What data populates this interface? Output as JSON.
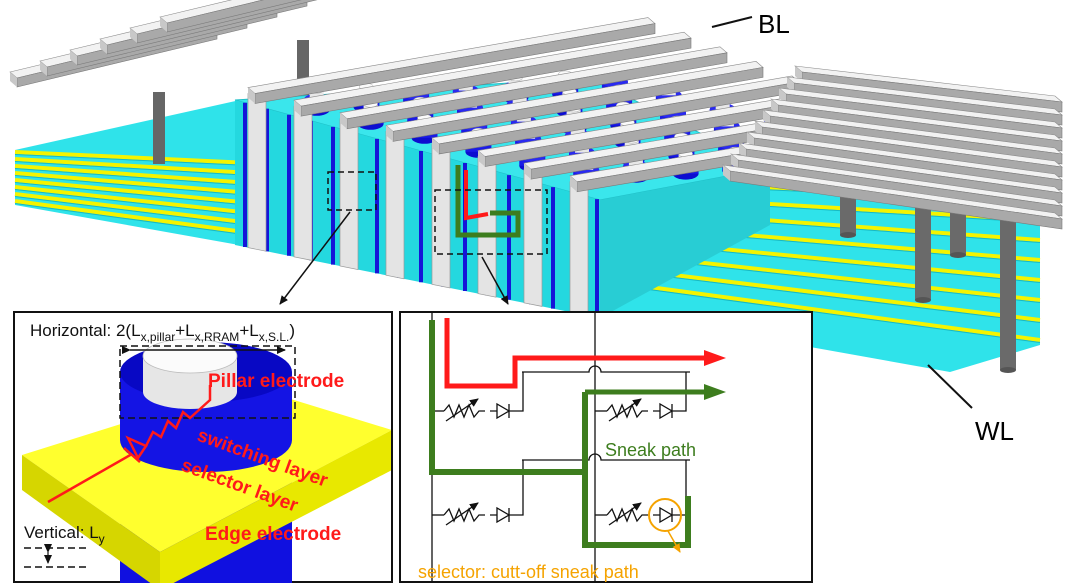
{
  "labels": {
    "bl": "BL",
    "wl": "WL"
  },
  "left_inset": {
    "horizontal": [
      {
        "text": "Horizontal: 2(L"
      },
      {
        "sub": "x,pillar"
      },
      {
        "text": "+L"
      },
      {
        "sub": "x,RRAM"
      },
      {
        "text": "+L"
      },
      {
        "sub": "x,S.L."
      },
      {
        "text": ")"
      }
    ],
    "pillar_electrode": "Pillar electrode",
    "switching_layer": "switching layer",
    "selector_layer": "selector layer",
    "edge_electrode": "Edge electrode",
    "vertical": [
      {
        "text": "Vertical: L"
      },
      {
        "sub": "y"
      }
    ]
  },
  "right_inset": {
    "sneak_path": "Sneak path",
    "selector_note": "selector: cutt-off sneak path"
  }
}
